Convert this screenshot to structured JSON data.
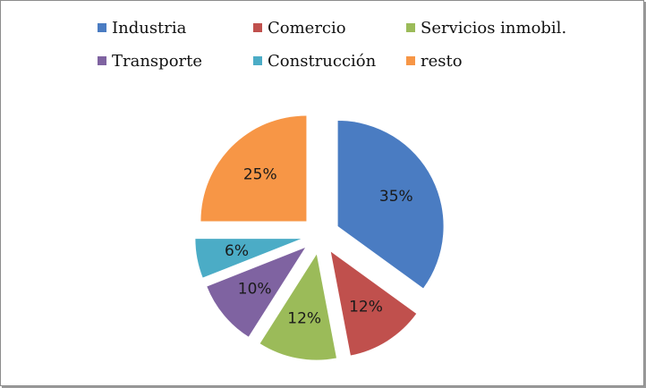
{
  "chart_data": {
    "type": "pie",
    "exploded": true,
    "legend_position": "top",
    "slices": [
      {
        "label": "Industria",
        "value": 35,
        "value_label": "35%",
        "color": "#4a7cc2"
      },
      {
        "label": "Comercio",
        "value": 12,
        "value_label": "12%",
        "color": "#c0504d"
      },
      {
        "label": "Servicios inmobil.",
        "value": 12,
        "value_label": "12%",
        "color": "#9bbb59"
      },
      {
        "label": "Transporte",
        "value": 10,
        "value_label": "10%",
        "color": "#7f63a1"
      },
      {
        "label": "Construcción",
        "value": 6,
        "value_label": "6%",
        "color": "#4bacc6"
      },
      {
        "label": "resto",
        "value": 25,
        "value_label": "25%",
        "color": "#f79646"
      }
    ]
  }
}
